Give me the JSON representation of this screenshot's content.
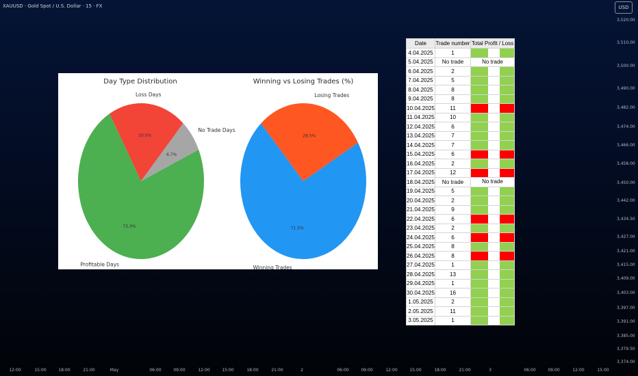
{
  "header": {
    "symbol": "XAUUSD · Gold Spot / U.S. Dollar · 15 · FX",
    "currency": "USD"
  },
  "price_axis": [
    "3,520.00",
    "3,510.00",
    "3,500.00",
    "3,490.00",
    "3,482.00",
    "3,474.00",
    "3,466.00",
    "3,458.00",
    "3,450.00",
    "3,442.00",
    "3,434.50",
    "3,427.00",
    "3,421.00",
    "3,415.00",
    "3,409.00",
    "3,403.00",
    "3,397.00",
    "3,391.00",
    "3,385.00",
    "3,379.50",
    "3,374.00"
  ],
  "time_axis": [
    "12:00",
    "15:00",
    "18:00",
    "21:00",
    "May",
    "06:00",
    "09:00",
    "12:00",
    "15:00",
    "18:00",
    "21:00",
    "2",
    "06:00",
    "09:00",
    "12:00",
    "15:00",
    "18:00",
    "21:00",
    "3",
    "06:00",
    "09:00",
    "12:00",
    "15:00"
  ],
  "colors": {
    "profit": "#92d050",
    "loss": "#ff0000",
    "loss_days": "#f24437",
    "profitable_days": "#4caf50",
    "no_trade_days": "#a6a6a6",
    "losing_trades": "#ff5722",
    "winning_trades": "#2196f3"
  },
  "chart_data": [
    {
      "type": "pie",
      "title": "Day Type Distribution",
      "labels": [
        "Loss Days",
        "Profitable Days",
        "No Trade Days"
      ],
      "values": [
        20.0,
        73.3,
        6.7
      ],
      "value_labels": [
        "20.0%",
        "73.3%",
        "6.7%"
      ],
      "colors": [
        "#f24437",
        "#4caf50",
        "#a6a6a6"
      ]
    },
    {
      "type": "pie",
      "title": "Winning vs Losing Trades (%)",
      "labels": [
        "Losing Trades",
        "Winning Trades"
      ],
      "values": [
        28.5,
        71.5
      ],
      "value_labels": [
        "28.5%",
        "71.5%"
      ],
      "colors": [
        "#ff5722",
        "#2196f3"
      ]
    },
    {
      "type": "table",
      "columns": [
        "Date",
        "Trade number",
        "Total Profit / Loss"
      ],
      "no_trade_label": "No trade",
      "rows": [
        {
          "date": "4.04.2025",
          "trades": "1",
          "result": "profit"
        },
        {
          "date": "5.04.2025",
          "trades": "No trade",
          "result": "none"
        },
        {
          "date": "6.04.2025",
          "trades": "2",
          "result": "profit"
        },
        {
          "date": "7.04.2025",
          "trades": "5",
          "result": "profit"
        },
        {
          "date": "8.04.2025",
          "trades": "8",
          "result": "profit"
        },
        {
          "date": "9.04.2025",
          "trades": "8",
          "result": "profit"
        },
        {
          "date": "10.04.2025",
          "trades": "11",
          "result": "loss"
        },
        {
          "date": "11.04.2025",
          "trades": "10",
          "result": "profit"
        },
        {
          "date": "12.04.2025",
          "trades": "6",
          "result": "profit"
        },
        {
          "date": "13.04.2025",
          "trades": "7",
          "result": "profit"
        },
        {
          "date": "14.04.2025",
          "trades": "7",
          "result": "profit"
        },
        {
          "date": "15.04.2025",
          "trades": "6",
          "result": "loss"
        },
        {
          "date": "16.04.2025",
          "trades": "2",
          "result": "profit"
        },
        {
          "date": "17.04.2025",
          "trades": "12",
          "result": "loss"
        },
        {
          "date": "18.04.2025",
          "trades": "No trade",
          "result": "none"
        },
        {
          "date": "19.04.2025",
          "trades": "5",
          "result": "profit"
        },
        {
          "date": "20.04.2025",
          "trades": "2",
          "result": "profit"
        },
        {
          "date": "21.04.2025",
          "trades": "9",
          "result": "profit"
        },
        {
          "date": "22.04.2025",
          "trades": "6",
          "result": "loss"
        },
        {
          "date": "23.04.2025",
          "trades": "2",
          "result": "profit"
        },
        {
          "date": "24.04.2025",
          "trades": "6",
          "result": "loss"
        },
        {
          "date": "25.04.2025",
          "trades": "8",
          "result": "profit"
        },
        {
          "date": "26.04.2025",
          "trades": "8",
          "result": "loss"
        },
        {
          "date": "27.04.2025",
          "trades": "1",
          "result": "profit"
        },
        {
          "date": "28.04.2025",
          "trades": "13",
          "result": "profit"
        },
        {
          "date": "29.04.2025",
          "trades": "1",
          "result": "profit"
        },
        {
          "date": "30.04.2025",
          "trades": "16",
          "result": "profit"
        },
        {
          "date": "1.05.2025",
          "trades": "2",
          "result": "profit"
        },
        {
          "date": "2.05.2025",
          "trades": "11",
          "result": "profit"
        },
        {
          "date": "3.05.2025",
          "trades": "1",
          "result": "profit"
        }
      ]
    }
  ]
}
